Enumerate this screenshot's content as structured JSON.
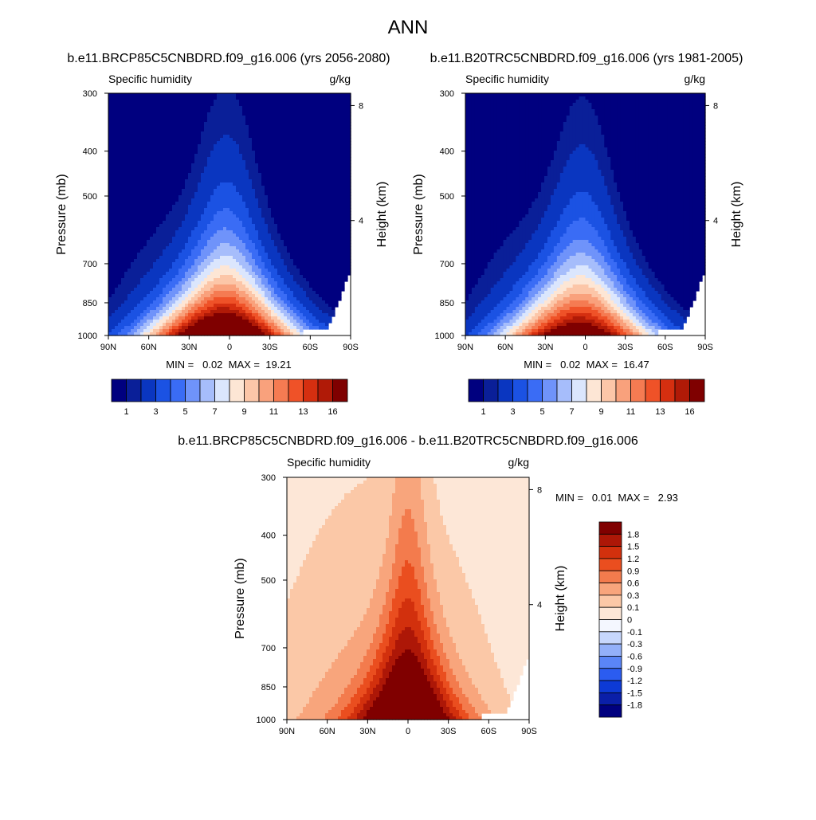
{
  "page_title": "ANN",
  "colors": {
    "abs_palette": [
      "#00007f",
      "#0a1f98",
      "#0a36c0",
      "#1b52e3",
      "#3a6cf5",
      "#6f93fa",
      "#a6bdfb",
      "#dbe6fd",
      "#fde6d5",
      "#fcc6a8",
      "#f9a17c",
      "#f57b52",
      "#ef5228",
      "#d52f10",
      "#b01a07",
      "#7f0000"
    ],
    "diff_palette": [
      "#00007f",
      "#0a1fa8",
      "#0d3ad5",
      "#2b5cf0",
      "#5a85f7",
      "#93b0fa",
      "#c7d7fd",
      "#f4f7ff",
      "#fde7d7",
      "#fbc8a7",
      "#f8a57c",
      "#f37b4d",
      "#ea4e1f",
      "#d2300d",
      "#ad1707",
      "#800000"
    ]
  },
  "chart_data": [
    {
      "type": "heatmap",
      "panel": "rcp85",
      "title": "b.e11.BRCP85C5CNBDRD.f09_g16.006 (yrs 2056-2080)",
      "left_label": "Specific humidity",
      "right_label": "g/kg",
      "ylabel": "Pressure (mb)",
      "y2label": "Height (km)",
      "x_ticks": [
        "90N",
        "60N",
        "30N",
        "0",
        "30S",
        "60S",
        "90S"
      ],
      "y_ticks": [
        "300",
        "400",
        "500",
        "700",
        "850",
        "1000"
      ],
      "y_tick_values": [
        300,
        400,
        500,
        700,
        850,
        1000
      ],
      "y2_ticks": [
        "8",
        "4"
      ],
      "y2_tick_values": [
        8,
        4
      ],
      "ylim": [
        1000,
        300
      ],
      "xlim": [
        90,
        -90
      ],
      "stats": "MIN =   0.02  MAX =  19.21",
      "min": 0.02,
      "max": 19.21,
      "colorbar_labels": [
        "1",
        "3",
        "5",
        "7",
        "9",
        "11",
        "13",
        "16"
      ],
      "levels": [
        0.5,
        1,
        2,
        3,
        4,
        5,
        6,
        7,
        8,
        9,
        10,
        11,
        12,
        13,
        14,
        16
      ]
    },
    {
      "type": "heatmap",
      "panel": "control",
      "title": "b.e11.B20TRC5CNBDRD.f09_g16.006 (yrs 1981-2005)",
      "left_label": "Specific humidity",
      "right_label": "g/kg",
      "ylabel": "Pressure (mb)",
      "y2label": "Height (km)",
      "x_ticks": [
        "90N",
        "60N",
        "30N",
        "0",
        "30S",
        "60S",
        "90S"
      ],
      "y_ticks": [
        "300",
        "400",
        "500",
        "700",
        "850",
        "1000"
      ],
      "y_tick_values": [
        300,
        400,
        500,
        700,
        850,
        1000
      ],
      "y2_ticks": [
        "8",
        "4"
      ],
      "y2_tick_values": [
        8,
        4
      ],
      "ylim": [
        1000,
        300
      ],
      "xlim": [
        90,
        -90
      ],
      "stats": "MIN =   0.02  MAX =  16.47",
      "min": 0.02,
      "max": 16.47,
      "colorbar_labels": [
        "1",
        "3",
        "5",
        "7",
        "9",
        "11",
        "13",
        "16"
      ],
      "levels": [
        0.5,
        1,
        2,
        3,
        4,
        5,
        6,
        7,
        8,
        9,
        10,
        11,
        12,
        13,
        14,
        16
      ]
    },
    {
      "type": "heatmap",
      "panel": "difference",
      "title": "b.e11.BRCP85C5CNBDRD.f09_g16.006 - b.e11.B20TRC5CNBDRD.f09_g16.006",
      "left_label": "Specific humidity",
      "right_label": "g/kg",
      "ylabel": "Pressure (mb)",
      "y2label": "Height (km)",
      "x_ticks": [
        "90N",
        "60N",
        "30N",
        "0",
        "30S",
        "60S",
        "90S"
      ],
      "y_ticks": [
        "300",
        "400",
        "500",
        "700",
        "850",
        "1000"
      ],
      "y_tick_values": [
        300,
        400,
        500,
        700,
        850,
        1000
      ],
      "y2_ticks": [
        "8",
        "4"
      ],
      "y2_tick_values": [
        8,
        4
      ],
      "ylim": [
        1000,
        300
      ],
      "xlim": [
        90,
        -90
      ],
      "stats": "MIN =   0.01  MAX =   2.93",
      "min": 0.01,
      "max": 2.93,
      "colorbar_labels": [
        "1.8",
        "1.5",
        "1.2",
        "0.9",
        "0.6",
        "0.3",
        "0.1",
        "0",
        "-0.1",
        "-0.3",
        "-0.6",
        "-0.9",
        "-1.2",
        "-1.5",
        "-1.8"
      ],
      "levels": [
        -1.8,
        -1.5,
        -1.2,
        -0.9,
        -0.6,
        -0.3,
        -0.1,
        0,
        0.1,
        0.3,
        0.6,
        0.9,
        1.2,
        1.5,
        1.8
      ]
    }
  ]
}
